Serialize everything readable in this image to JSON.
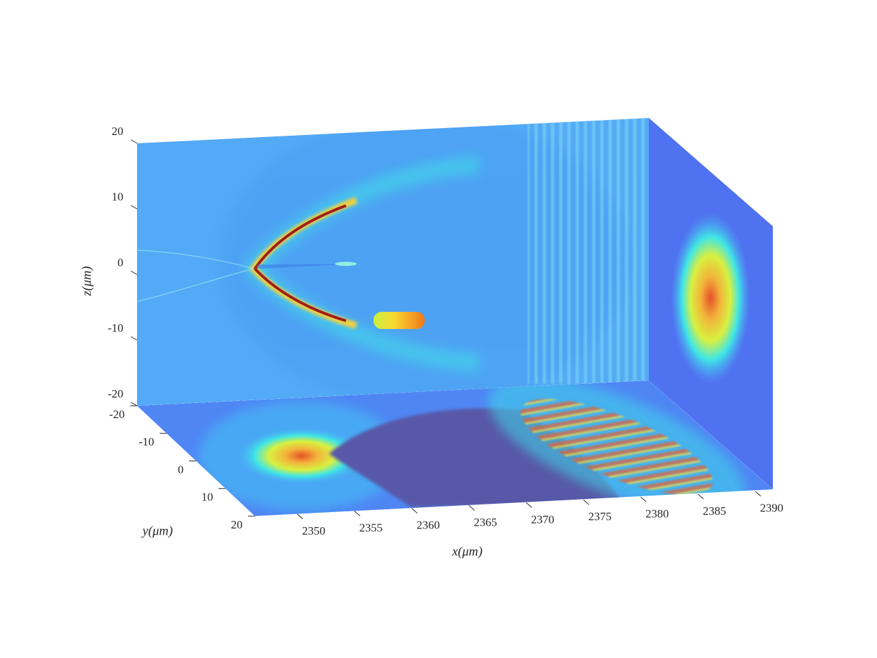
{
  "chart_data": {
    "type": "slice3d",
    "xlabel": "x(μm)",
    "ylabel": "y(μm)",
    "zlabel": "z(μm)",
    "xlim": [
      2346.3,
      2391
    ],
    "ylim": [
      -20,
      20
    ],
    "zlim": [
      -20,
      20
    ],
    "xticks": [
      2350,
      2355,
      2360,
      2365,
      2370,
      2375,
      2380,
      2385,
      2390
    ],
    "yticks": [
      -20,
      -10,
      0,
      10,
      20
    ],
    "zticks": [
      -20,
      -10,
      0,
      10,
      20
    ]
  }
}
